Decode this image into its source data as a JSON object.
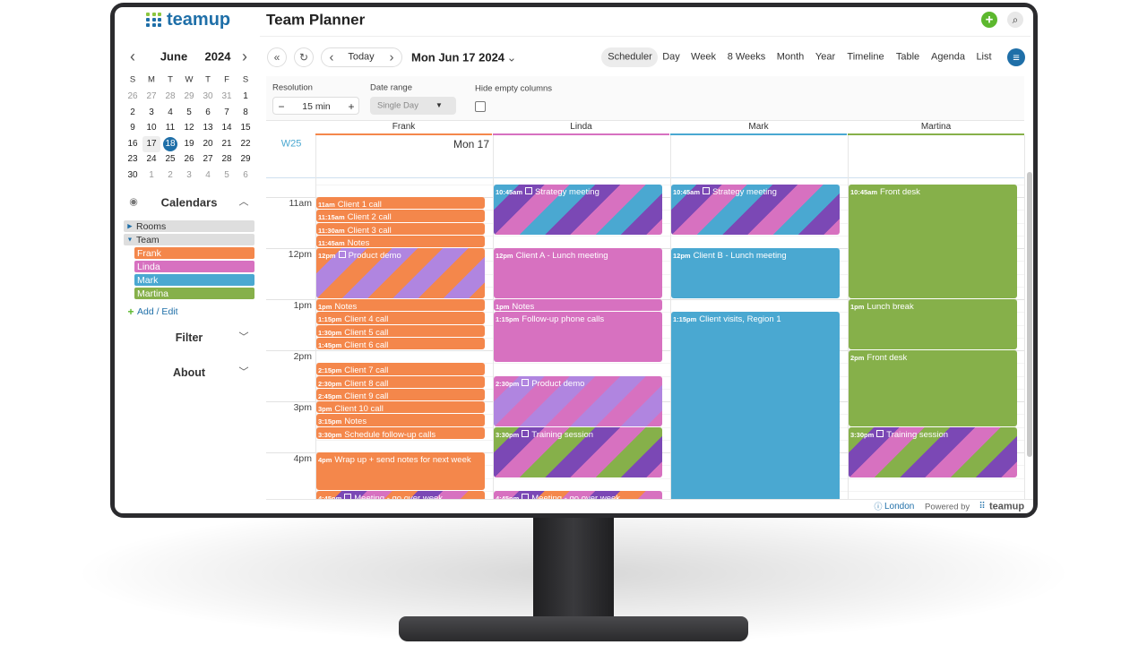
{
  "header": {
    "logo": "teamup",
    "title": "Team Planner"
  },
  "sidebar": {
    "month": "June",
    "year": "2024",
    "weekdays": [
      "S",
      "M",
      "T",
      "W",
      "T",
      "F",
      "S"
    ],
    "weeks": [
      [
        "26",
        "27",
        "28",
        "29",
        "30",
        "31",
        "1"
      ],
      [
        "2",
        "3",
        "4",
        "5",
        "6",
        "7",
        "8"
      ],
      [
        "9",
        "10",
        "11",
        "12",
        "13",
        "14",
        "15"
      ],
      [
        "16",
        "17",
        "18",
        "19",
        "20",
        "21",
        "22"
      ],
      [
        "23",
        "24",
        "25",
        "26",
        "27",
        "28",
        "29"
      ],
      [
        "30",
        "1",
        "2",
        "3",
        "4",
        "5",
        "6"
      ]
    ],
    "calendars_heading": "Calendars",
    "groups": [
      "Rooms",
      "Team"
    ],
    "calendars": [
      "Frank",
      "Linda",
      "Mark",
      "Martina"
    ],
    "add_edit": "Add / Edit",
    "filter": "Filter",
    "about": "About"
  },
  "toolbar": {
    "today": "Today",
    "date": "Mon Jun 17 2024",
    "views": [
      "Scheduler",
      "Day",
      "Week",
      "8 Weeks",
      "Month",
      "Year",
      "Timeline",
      "Table",
      "Agenda",
      "List"
    ]
  },
  "options": {
    "resolution_label": "Resolution",
    "resolution": "15 min",
    "date_range_label": "Date range",
    "date_range": "Single Day",
    "hide_empty": "Hide empty columns"
  },
  "scheduler": {
    "columns": [
      "Frank",
      "Linda",
      "Mark",
      "Martina"
    ],
    "week": "W25",
    "day": "Mon 17",
    "hours": [
      "11am",
      "12pm",
      "1pm",
      "2pm",
      "3pm",
      "4pm"
    ],
    "events": [
      [
        {
          "time": "11am",
          "title": "Client 1 call"
        },
        {
          "time": "11:15am",
          "title": "Client 2 call"
        },
        {
          "time": "11:30am",
          "title": "Client 3 call"
        },
        {
          "time": "11:45am",
          "title": "Notes"
        },
        {
          "time": "12pm",
          "title": "Product demo"
        },
        {
          "time": "1pm",
          "title": "Notes"
        },
        {
          "time": "1:15pm",
          "title": "Client 4 call"
        },
        {
          "time": "1:30pm",
          "title": "Client 5 call"
        },
        {
          "time": "1:45pm",
          "title": "Client 6 call"
        },
        {
          "time": "2:15pm",
          "title": "Client 7 call"
        },
        {
          "time": "2:30pm",
          "title": "Client 8 call"
        },
        {
          "time": "2:45pm",
          "title": "Client 9 call"
        },
        {
          "time": "3pm",
          "title": "Client 10 call"
        },
        {
          "time": "3:15pm",
          "title": "Notes"
        },
        {
          "time": "3:30pm",
          "title": "Schedule follow-up calls"
        },
        {
          "time": "4pm",
          "title": "Wrap up + send notes for next week"
        },
        {
          "time": "4:45pm",
          "title": "Meeting - go over week"
        }
      ],
      [
        {
          "time": "10:45am",
          "title": "Strategy meeting"
        },
        {
          "time": "12pm",
          "title": "Client A - Lunch meeting"
        },
        {
          "time": "1pm",
          "title": "Notes"
        },
        {
          "time": "1:15pm",
          "title": "Follow-up phone calls"
        },
        {
          "time": "2:30pm",
          "title": "Product demo"
        },
        {
          "time": "3:30pm",
          "title": "Training session"
        },
        {
          "time": "4:45pm",
          "title": "Meeting - go over week"
        }
      ],
      [
        {
          "time": "10:45am",
          "title": "Strategy meeting"
        },
        {
          "time": "12pm",
          "title": "Client B - Lunch meeting"
        },
        {
          "time": "1:15pm",
          "title": "Client visits, Region 1"
        }
      ],
      [
        {
          "time": "10:45am",
          "title": "Front desk"
        },
        {
          "time": "1pm",
          "title": "Lunch break"
        },
        {
          "time": "2pm",
          "title": "Front desk"
        },
        {
          "time": "3:30pm",
          "title": "Training session"
        }
      ]
    ]
  },
  "footer": {
    "timezone": "London",
    "powered_by": "Powered by",
    "brand": "teamup"
  }
}
